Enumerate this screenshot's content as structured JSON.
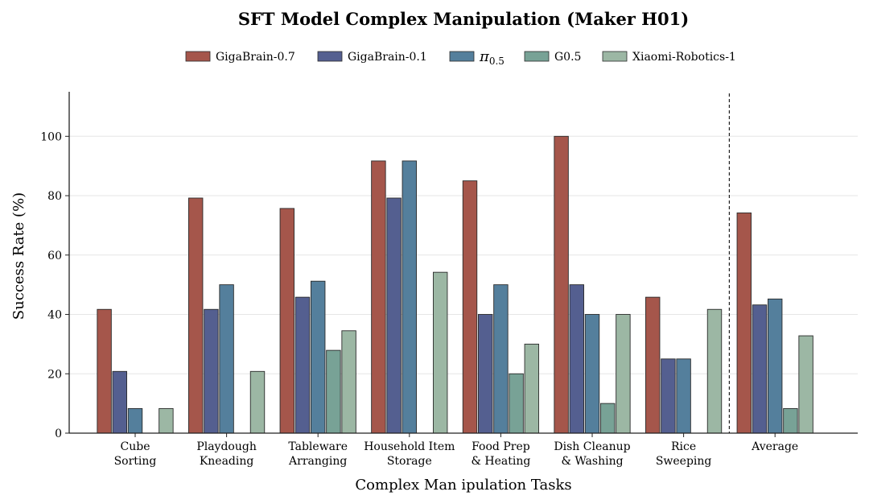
{
  "chart_data": {
    "type": "bar",
    "title": "SFT Model Complex Manipulation (Maker H01)",
    "xlabel": "Complex Man ipulation Tasks",
    "ylabel": "Success Rate (%)",
    "ylim": [
      0,
      115
    ],
    "yticks": [
      0,
      20,
      40,
      60,
      80,
      100
    ],
    "grid": true,
    "legend_position": "top-center",
    "categories": [
      [
        "Cube",
        "Sorting"
      ],
      [
        "Playdough",
        "Kneading"
      ],
      [
        "Tableware",
        "Arranging"
      ],
      [
        "Household Item",
        "Storage"
      ],
      [
        "Food Prep",
        "& Heating"
      ],
      [
        "Dish Cleanup",
        "& Washing"
      ],
      [
        "Rice",
        "Sweeping"
      ],
      [
        "Average"
      ]
    ],
    "separator_after_category": 6,
    "series": [
      {
        "name": "GigaBrain-0.7",
        "color": "#a5564b",
        "values": [
          41.7,
          79.2,
          75.7,
          91.7,
          85.0,
          100.0,
          45.8,
          74.2
        ]
      },
      {
        "name": "GigaBrain-0.1",
        "color": "#545f90",
        "values": [
          20.8,
          41.7,
          45.8,
          79.2,
          40.0,
          50.0,
          25.0,
          43.2
        ]
      },
      {
        "name_base": "π",
        "name_sub": "0.5",
        "color": "#547f9c",
        "values": [
          8.3,
          50.0,
          51.2,
          91.7,
          50.0,
          40.0,
          25.0,
          45.2
        ]
      },
      {
        "name": "G0.5",
        "color": "#78a296",
        "values": [
          0,
          0,
          27.9,
          0,
          20.0,
          10.0,
          0,
          8.3
        ]
      },
      {
        "name": "Xiaomi-Robotics-1",
        "color": "#9cb7a4",
        "values": [
          8.3,
          20.8,
          34.5,
          54.2,
          30.0,
          40.0,
          41.7,
          32.8
        ]
      }
    ]
  }
}
